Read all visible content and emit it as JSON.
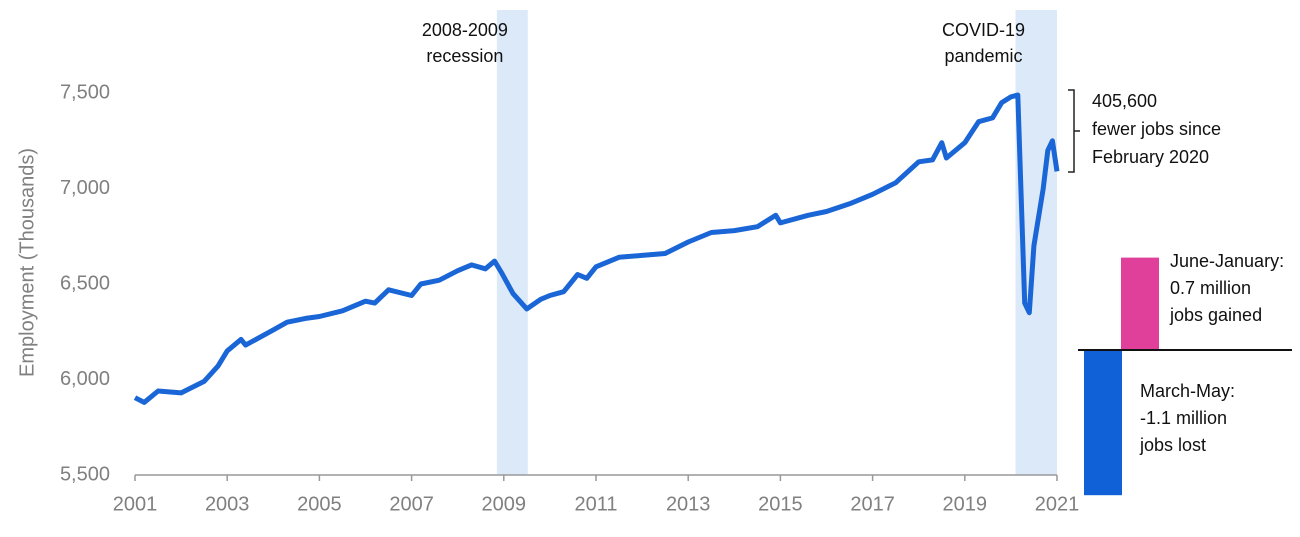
{
  "chart_data": [
    {
      "type": "line",
      "ylabel": "Employment (Thousands)",
      "x": [
        2001.0,
        2001.2,
        2001.5,
        2002.0,
        2002.5,
        2002.8,
        2003.0,
        2003.3,
        2003.4,
        2004.0,
        2004.3,
        2004.7,
        2005.0,
        2005.5,
        2006.0,
        2006.2,
        2006.5,
        2007.0,
        2007.2,
        2007.6,
        2008.0,
        2008.3,
        2008.6,
        2008.8,
        2008.95,
        2009.2,
        2009.5,
        2009.8,
        2010.0,
        2010.3,
        2010.6,
        2010.8,
        2011.0,
        2011.5,
        2012.0,
        2012.5,
        2013.0,
        2013.5,
        2014.0,
        2014.5,
        2014.9,
        2015.0,
        2015.6,
        2016.0,
        2016.5,
        2017.0,
        2017.5,
        2018.0,
        2018.3,
        2018.5,
        2018.6,
        2019.0,
        2019.3,
        2019.6,
        2019.8,
        2020.0,
        2020.15,
        2020.3,
        2020.4,
        2020.5,
        2020.7,
        2020.8,
        2020.9,
        2021.0
      ],
      "series": [
        {
          "color": "#1a66d6",
          "values": [
            5905,
            5880,
            5940,
            5930,
            5990,
            6070,
            6150,
            6210,
            6180,
            6260,
            6300,
            6320,
            6330,
            6360,
            6410,
            6400,
            6470,
            6440,
            6500,
            6520,
            6570,
            6600,
            6580,
            6620,
            6560,
            6450,
            6370,
            6420,
            6440,
            6460,
            6550,
            6530,
            6590,
            6640,
            6650,
            6660,
            6720,
            6770,
            6780,
            6800,
            6860,
            6820,
            6860,
            6880,
            6920,
            6970,
            7030,
            7140,
            7150,
            7240,
            7160,
            7240,
            7350,
            7370,
            7450,
            7480,
            7490,
            6400,
            6350,
            6700,
            7000,
            7200,
            7250,
            7090
          ]
        }
      ],
      "xlim": [
        2001,
        2021
      ],
      "xticks": [
        2001,
        2003,
        2005,
        2007,
        2009,
        2011,
        2013,
        2015,
        2017,
        2019,
        2021
      ],
      "ylim": [
        5500,
        7935
      ],
      "yticks": [
        {
          "value": 5500,
          "label": "5,500"
        },
        {
          "value": 6000,
          "label": "6,000"
        },
        {
          "value": 6500,
          "label": "6,500"
        },
        {
          "value": 7000,
          "label": "7,000"
        },
        {
          "value": 7500,
          "label": "7,500"
        }
      ],
      "shaded_periods": [
        {
          "range": [
            2008.85,
            2009.52
          ],
          "color": "#dce9f8",
          "label": [
            "2008-2009",
            "recession"
          ]
        },
        {
          "range": [
            2020.1,
            2021.0
          ],
          "color": "#dce9f8",
          "label": [
            "COVID-19",
            "pandemic"
          ]
        }
      ],
      "note": [
        "405,600",
        "fewer jobs since",
        "February 2020"
      ]
    },
    {
      "type": "bar",
      "categories": [
        "March-May:",
        "June-January:"
      ],
      "values": [
        -1.1,
        0.7
      ],
      "value_labels": [
        "-1.1 million",
        "0.7 million"
      ],
      "descriptions": [
        "jobs lost",
        "jobs gained"
      ],
      "colors": [
        "#1060d8",
        "#e0409a"
      ]
    }
  ]
}
